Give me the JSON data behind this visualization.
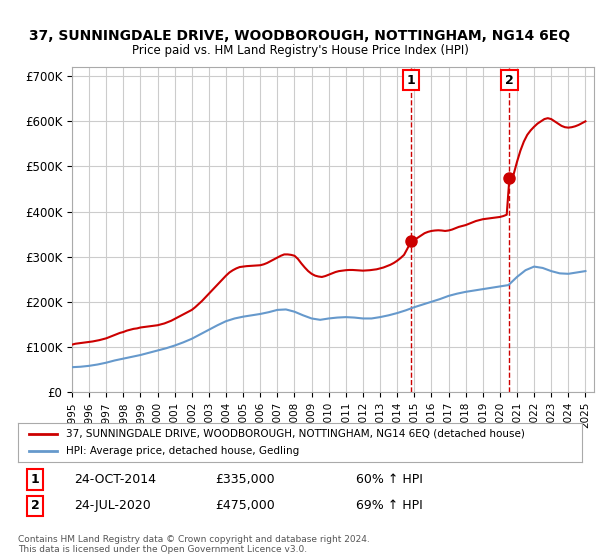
{
  "title": "37, SUNNINGDALE DRIVE, WOODBOROUGH, NOTTINGHAM, NG14 6EQ",
  "subtitle": "Price paid vs. HM Land Registry's House Price Index (HPI)",
  "ylabel_ticks": [
    "£0",
    "£100K",
    "£200K",
    "£300K",
    "£400K",
    "£500K",
    "£600K",
    "£700K"
  ],
  "ytick_values": [
    0,
    100000,
    200000,
    300000,
    400000,
    500000,
    600000,
    700000
  ],
  "ylim": [
    0,
    720000
  ],
  "xlim_start": 1995.0,
  "xlim_end": 2025.5,
  "transaction1_x": 2014.82,
  "transaction1_y": 335000,
  "transaction1_label": "1",
  "transaction1_date": "24-OCT-2014",
  "transaction1_price": "£335,000",
  "transaction1_hpi": "60% ↑ HPI",
  "transaction2_x": 2020.56,
  "transaction2_y": 475000,
  "transaction2_label": "2",
  "transaction2_date": "24-JUL-2020",
  "transaction2_price": "£475,000",
  "transaction2_hpi": "69% ↑ HPI",
  "red_line_color": "#cc0000",
  "blue_line_color": "#6699cc",
  "grid_color": "#cccccc",
  "background_color": "#ffffff",
  "legend_line1": "37, SUNNINGDALE DRIVE, WOODBOROUGH, NOTTINGHAM, NG14 6EQ (detached house)",
  "legend_line2": "HPI: Average price, detached house, Gedling",
  "footer": "Contains HM Land Registry data © Crown copyright and database right 2024.\nThis data is licensed under the Open Government Licence v3.0.",
  "red_x": [
    1995.0,
    1995.1,
    1995.2,
    1995.3,
    1995.4,
    1995.5,
    1995.6,
    1995.7,
    1995.8,
    1995.9,
    1996.0,
    1996.2,
    1996.4,
    1996.6,
    1996.8,
    1997.0,
    1997.2,
    1997.4,
    1997.6,
    1997.8,
    1998.0,
    1998.2,
    1998.4,
    1998.6,
    1998.8,
    1999.0,
    1999.2,
    1999.4,
    1999.6,
    1999.8,
    2000.0,
    2000.2,
    2000.4,
    2000.6,
    2000.8,
    2001.0,
    2001.2,
    2001.4,
    2001.6,
    2001.8,
    2002.0,
    2002.2,
    2002.4,
    2002.6,
    2002.8,
    2003.0,
    2003.2,
    2003.4,
    2003.6,
    2003.8,
    2004.0,
    2004.2,
    2004.4,
    2004.6,
    2004.8,
    2005.0,
    2005.2,
    2005.4,
    2005.6,
    2005.8,
    2006.0,
    2006.2,
    2006.4,
    2006.6,
    2006.8,
    2007.0,
    2007.2,
    2007.4,
    2007.6,
    2007.8,
    2008.0,
    2008.2,
    2008.4,
    2008.6,
    2008.8,
    2009.0,
    2009.2,
    2009.4,
    2009.6,
    2009.8,
    2010.0,
    2010.2,
    2010.4,
    2010.6,
    2010.8,
    2011.0,
    2011.2,
    2011.4,
    2011.6,
    2011.8,
    2012.0,
    2012.2,
    2012.4,
    2012.6,
    2012.8,
    2013.0,
    2013.2,
    2013.4,
    2013.6,
    2013.8,
    2014.0,
    2014.2,
    2014.4,
    2014.6,
    2014.82,
    2014.9,
    2015.0,
    2015.2,
    2015.4,
    2015.6,
    2015.8,
    2016.0,
    2016.2,
    2016.4,
    2016.6,
    2016.8,
    2017.0,
    2017.2,
    2017.4,
    2017.6,
    2017.8,
    2018.0,
    2018.2,
    2018.4,
    2018.6,
    2018.8,
    2019.0,
    2019.2,
    2019.4,
    2019.6,
    2019.8,
    2020.0,
    2020.2,
    2020.4,
    2020.56,
    2020.7,
    2020.8,
    2021.0,
    2021.2,
    2021.4,
    2021.6,
    2021.8,
    2022.0,
    2022.2,
    2022.4,
    2022.6,
    2022.8,
    2023.0,
    2023.2,
    2023.4,
    2023.6,
    2023.8,
    2024.0,
    2024.2,
    2024.4,
    2024.6,
    2024.8,
    2025.0
  ],
  "red_y": [
    105000,
    106000,
    107000,
    107500,
    108000,
    108500,
    109000,
    109500,
    110000,
    110500,
    111000,
    112000,
    113500,
    115000,
    117000,
    119000,
    122000,
    125000,
    128000,
    131000,
    133000,
    136000,
    138000,
    140000,
    141000,
    143000,
    144000,
    145000,
    146000,
    147000,
    148000,
    150000,
    152000,
    155000,
    158000,
    162000,
    166000,
    170000,
    174000,
    178000,
    182000,
    188000,
    195000,
    202000,
    210000,
    218000,
    226000,
    234000,
    242000,
    250000,
    258000,
    265000,
    270000,
    274000,
    277000,
    278000,
    279000,
    279500,
    280000,
    280500,
    281000,
    283000,
    286000,
    290000,
    294000,
    298000,
    302000,
    305000,
    305000,
    304000,
    302000,
    295000,
    285000,
    276000,
    268000,
    262000,
    258000,
    256000,
    255000,
    257000,
    260000,
    263000,
    266000,
    268000,
    269000,
    270000,
    270500,
    270500,
    270000,
    269500,
    269000,
    269500,
    270000,
    271000,
    272000,
    274000,
    276000,
    279000,
    282000,
    286000,
    291000,
    297000,
    304000,
    318000,
    335000,
    336000,
    337000,
    342000,
    347000,
    352000,
    355000,
    357000,
    358000,
    358500,
    358000,
    357000,
    358000,
    360000,
    363000,
    366000,
    368000,
    370000,
    373000,
    376000,
    379000,
    381000,
    383000,
    384000,
    385000,
    386000,
    387000,
    388000,
    390000,
    393000,
    475000,
    478000,
    482000,
    510000,
    535000,
    555000,
    570000,
    580000,
    588000,
    595000,
    600000,
    605000,
    607000,
    605000,
    600000,
    595000,
    590000,
    587000,
    586000,
    587000,
    589000,
    592000,
    596000,
    600000
  ],
  "blue_x": [
    1995.0,
    1995.5,
    1996.0,
    1996.5,
    1997.0,
    1997.5,
    1998.0,
    1998.5,
    1999.0,
    1999.5,
    2000.0,
    2000.5,
    2001.0,
    2001.5,
    2002.0,
    2002.5,
    2003.0,
    2003.5,
    2004.0,
    2004.5,
    2005.0,
    2005.5,
    2006.0,
    2006.5,
    2007.0,
    2007.5,
    2008.0,
    2008.5,
    2009.0,
    2009.5,
    2010.0,
    2010.5,
    2011.0,
    2011.5,
    2012.0,
    2012.5,
    2013.0,
    2013.5,
    2014.0,
    2014.5,
    2015.0,
    2015.5,
    2016.0,
    2016.5,
    2017.0,
    2017.5,
    2018.0,
    2018.5,
    2019.0,
    2019.5,
    2020.0,
    2020.5,
    2021.0,
    2021.5,
    2022.0,
    2022.5,
    2023.0,
    2023.5,
    2024.0,
    2024.5,
    2025.0
  ],
  "blue_y": [
    55000,
    56000,
    58000,
    61000,
    65000,
    70000,
    74000,
    78000,
    82000,
    87000,
    92000,
    97000,
    103000,
    110000,
    118000,
    128000,
    138000,
    148000,
    157000,
    163000,
    167000,
    170000,
    173000,
    177000,
    182000,
    183000,
    178000,
    170000,
    163000,
    160000,
    163000,
    165000,
    166000,
    165000,
    163000,
    163000,
    166000,
    170000,
    175000,
    181000,
    188000,
    194000,
    200000,
    206000,
    213000,
    218000,
    222000,
    225000,
    228000,
    231000,
    234000,
    237000,
    255000,
    270000,
    278000,
    275000,
    268000,
    263000,
    262000,
    265000,
    268000
  ]
}
